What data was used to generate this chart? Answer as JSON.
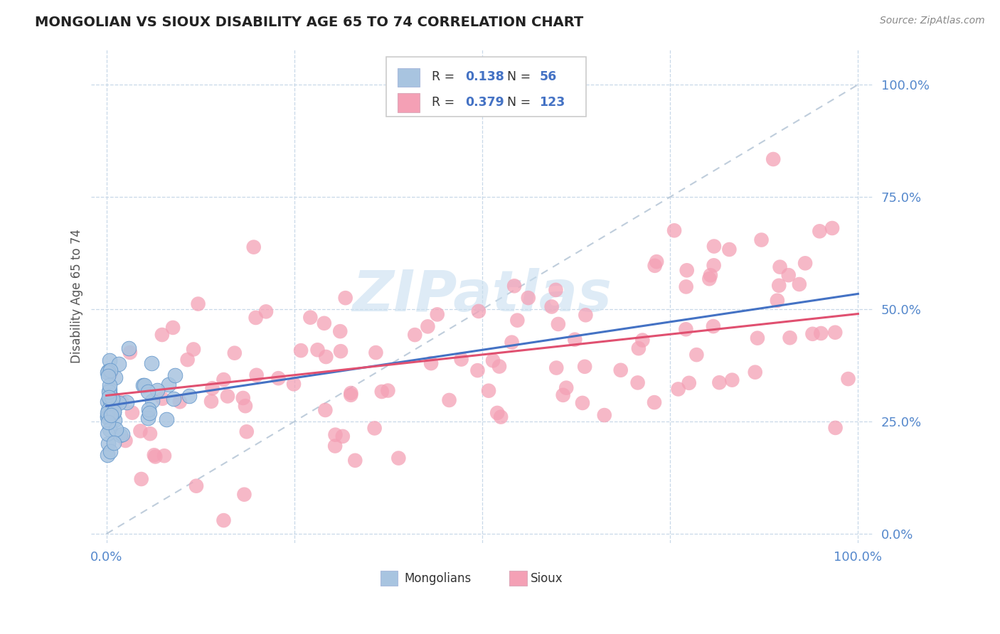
{
  "title": "MONGOLIAN VS SIOUX DISABILITY AGE 65 TO 74 CORRELATION CHART",
  "source": "Source: ZipAtlas.com",
  "ylabel": "Disability Age 65 to 74",
  "xlim": [
    -0.02,
    1.02
  ],
  "ylim": [
    -0.02,
    1.08
  ],
  "x_ticks": [
    0.0,
    0.25,
    0.5,
    0.75,
    1.0
  ],
  "x_tick_labels": [
    "0.0%",
    "",
    "",
    "",
    "100.0%"
  ],
  "y_ticks": [
    0.0,
    0.25,
    0.5,
    0.75,
    1.0
  ],
  "y_tick_labels": [
    "0.0%",
    "25.0%",
    "50.0%",
    "75.0%",
    "100.0%"
  ],
  "mongolian_R": 0.138,
  "mongolian_N": 56,
  "sioux_R": 0.379,
  "sioux_N": 123,
  "mongolian_color": "#a8c4e0",
  "sioux_color": "#f4a0b5",
  "mongolian_edge_color": "#6699cc",
  "sioux_edge_color": "#e080a0",
  "mongolian_line_color": "#4472c4",
  "sioux_line_color": "#e05070",
  "ref_line_color": "#b8c8d8",
  "watermark_color": "#c8dff0",
  "background_color": "#ffffff",
  "grid_color": "#c8d8e8",
  "tick_color": "#5588cc",
  "legend_R_color": "#333333",
  "legend_val_color": "#4472c4"
}
